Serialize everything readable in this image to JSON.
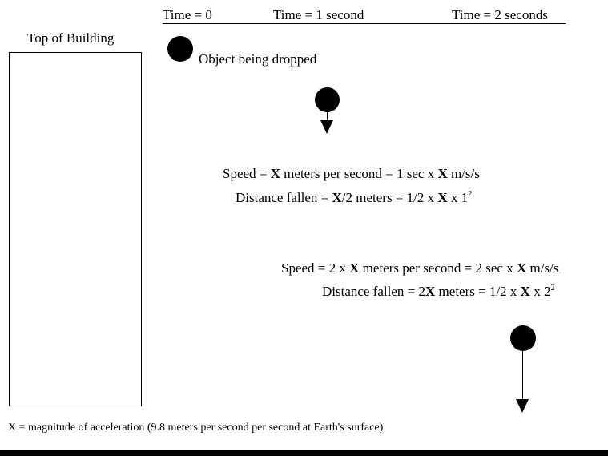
{
  "header": {
    "time0": "Time = 0",
    "time1": "Time = 1 second",
    "time2": "Time = 2 seconds"
  },
  "building": {
    "label": "Top of Building"
  },
  "object": {
    "label": "Object being dropped"
  },
  "t1": {
    "speed": {
      "pre": "Speed = ",
      "x1": "X",
      "mid": " meters per second = 1 sec x ",
      "x2": "X",
      "post": " m/s/s"
    },
    "distance": {
      "pre": "Distance fallen = ",
      "x1": "X",
      "mid": "/2 meters = 1/2 x ",
      "x2": "X",
      "post": " x 1",
      "exp": "2"
    }
  },
  "t2": {
    "speed": {
      "pre": "Speed = 2 x ",
      "x1": "X",
      "mid": " meters per second = 2 sec x ",
      "x2": "X",
      "post": " m/s/s"
    },
    "distance": {
      "pre": "Distance fallen = 2",
      "x1": "X",
      "mid": " meters = 1/2 x ",
      "x2": "X",
      "post": " x 2",
      "exp": "2"
    }
  },
  "footnote": "X = magnitude of acceleration (9.8 meters per second per second at Earth's surface)"
}
